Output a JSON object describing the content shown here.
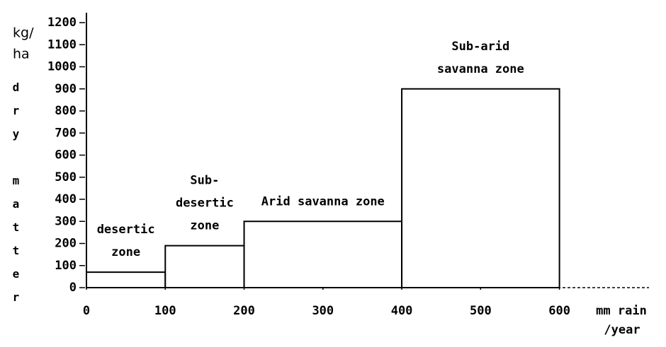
{
  "chart_data": {
    "type": "histogram",
    "bins": [
      0,
      100,
      200,
      400,
      600
    ],
    "values": [
      70,
      190,
      300,
      900
    ],
    "bar_labels": [
      [
        "desertic",
        "zone"
      ],
      [
        "Sub-",
        "desertic",
        "zone"
      ],
      [
        "Arid savanna zone"
      ],
      [
        "Sub-arid",
        "savanna zone"
      ]
    ],
    "xlim": [
      0,
      710
    ],
    "xticks": [
      0,
      100,
      200,
      300,
      400,
      500,
      600
    ],
    "ylim": [
      0,
      1200
    ],
    "yticks": [
      0,
      100,
      200,
      300,
      400,
      500,
      600,
      700,
      800,
      900,
      1000,
      1100,
      1200
    ],
    "xlabel": [
      "mm rain",
      "/year"
    ],
    "ylabel_unit": [
      "kg/",
      "ha"
    ],
    "ylabel": "dry matter",
    "color": "#ffffff",
    "edgecolor": "#000000"
  }
}
